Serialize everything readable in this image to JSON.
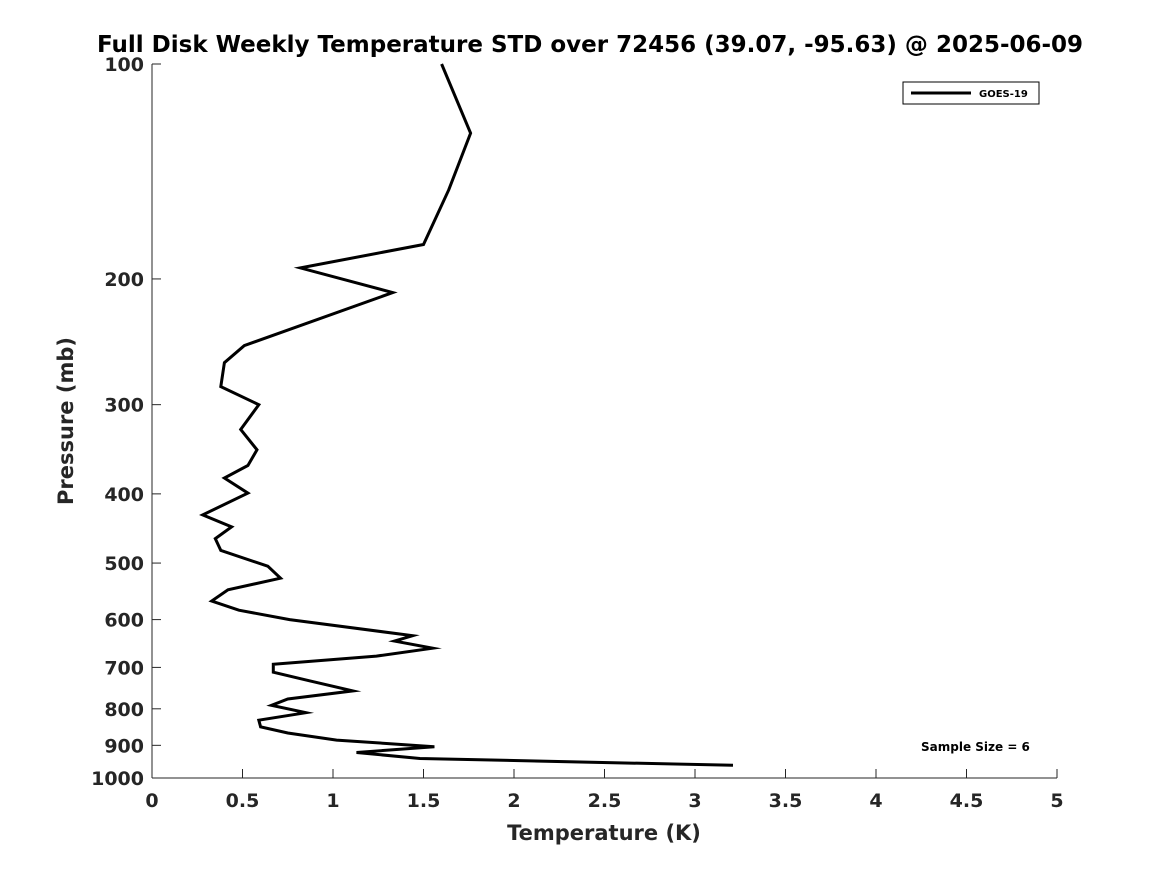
{
  "chart_data": {
    "type": "line",
    "title": "Full Disk Weekly Temperature STD over 72456 (39.07, -95.63) @ 2025-06-09",
    "xlabel": "Temperature (K)",
    "ylabel": "Pressure (mb)",
    "xlim": [
      0,
      5
    ],
    "ylim": [
      100,
      1000
    ],
    "y_scale": "log",
    "y_reversed": true,
    "grid": false,
    "legend_position": "top-right",
    "x_ticks": [
      0,
      0.5,
      1,
      1.5,
      2,
      2.5,
      3,
      3.5,
      4,
      4.5,
      5
    ],
    "x_tick_labels": [
      "0",
      "0.5",
      "1",
      "1.5",
      "2",
      "2.5",
      "3",
      "3.5",
      "4",
      "4.5",
      "5"
    ],
    "y_ticks": [
      100,
      200,
      300,
      400,
      500,
      600,
      700,
      800,
      900,
      1000
    ],
    "y_tick_labels": [
      "100",
      "200",
      "300",
      "400",
      "500",
      "600",
      "700",
      "800",
      "900",
      "1000"
    ],
    "series": [
      {
        "name": "GOES-19",
        "color": "#000000",
        "points": [
          [
            1.6,
            100
          ],
          [
            1.76,
            125
          ],
          [
            1.64,
            150
          ],
          [
            1.5,
            179
          ],
          [
            0.82,
            193
          ],
          [
            1.33,
            209
          ],
          [
            0.51,
            248
          ],
          [
            0.4,
            262
          ],
          [
            0.38,
            283
          ],
          [
            0.59,
            300
          ],
          [
            0.49,
            325
          ],
          [
            0.58,
            347
          ],
          [
            0.53,
            365
          ],
          [
            0.4,
            380
          ],
          [
            0.53,
            399
          ],
          [
            0.28,
            428
          ],
          [
            0.44,
            445
          ],
          [
            0.35,
            462
          ],
          [
            0.38,
            480
          ],
          [
            0.64,
            505
          ],
          [
            0.71,
            525
          ],
          [
            0.42,
            545
          ],
          [
            0.33,
            565
          ],
          [
            0.48,
            582
          ],
          [
            0.76,
            600
          ],
          [
            1.44,
            632
          ],
          [
            1.34,
            643
          ],
          [
            1.55,
            658
          ],
          [
            1.24,
            675
          ],
          [
            0.67,
            693
          ],
          [
            0.67,
            711
          ],
          [
            0.87,
            731
          ],
          [
            1.11,
            755
          ],
          [
            0.75,
            775
          ],
          [
            0.66,
            791
          ],
          [
            0.85,
            810
          ],
          [
            0.59,
            830
          ],
          [
            0.6,
            848
          ],
          [
            0.75,
            865
          ],
          [
            1.02,
            885
          ],
          [
            1.56,
            904
          ],
          [
            1.13,
            921
          ],
          [
            1.48,
            939
          ],
          [
            3.21,
            960
          ]
        ]
      }
    ],
    "annotations": [
      "Sample Size = 6"
    ]
  }
}
